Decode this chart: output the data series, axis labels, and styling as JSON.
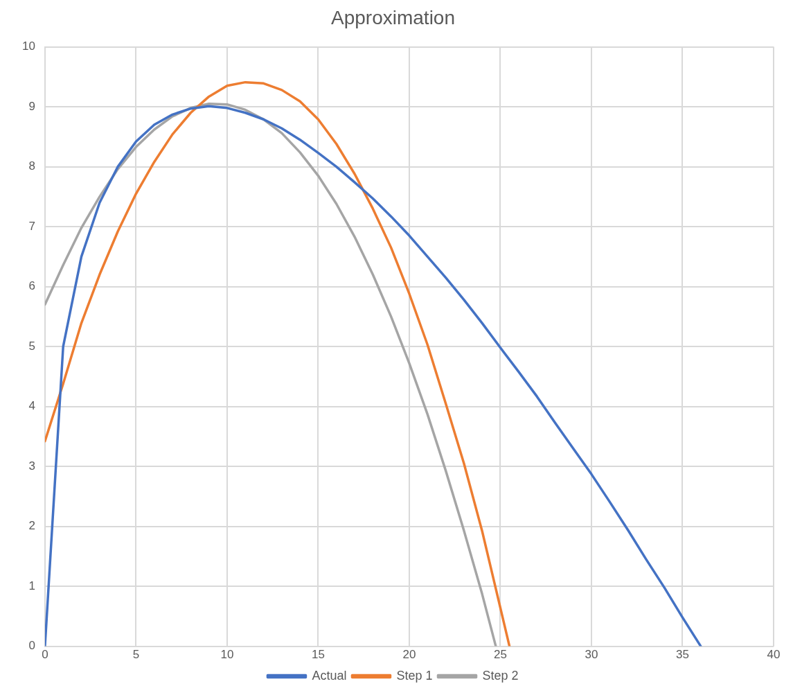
{
  "chart_data": {
    "type": "line",
    "title": "Approximation",
    "xlim": [
      0,
      40
    ],
    "xticks": [
      0,
      5,
      10,
      15,
      20,
      25,
      30,
      35,
      40
    ],
    "ylim": [
      0,
      10
    ],
    "yticks": [
      0,
      1,
      2,
      3,
      4,
      5,
      6,
      7,
      8,
      9,
      10
    ],
    "grid": true,
    "legend": "bottom",
    "marker": "none",
    "line_style": "solid",
    "series": [
      {
        "name": "Actual",
        "color": "#4472c4",
        "x": [
          0,
          1,
          2,
          3,
          4,
          5,
          6,
          7,
          8,
          9,
          10,
          11,
          12,
          13,
          14,
          15,
          16,
          17,
          18,
          19,
          20,
          21,
          22,
          23,
          24,
          25,
          26,
          27,
          28,
          29,
          30,
          31,
          32,
          33,
          34,
          35,
          36
        ],
        "values": [
          0,
          5.0,
          6.5,
          7.4,
          8.0,
          8.42,
          8.7,
          8.87,
          8.97,
          9.01,
          8.98,
          8.9,
          8.79,
          8.64,
          8.45,
          8.23,
          8.0,
          7.74,
          7.47,
          7.17,
          6.85,
          6.5,
          6.15,
          5.78,
          5.39,
          4.98,
          4.58,
          4.17,
          3.73,
          3.3,
          2.87,
          2.41,
          1.94,
          1.45,
          0.98,
          0.48,
          0
        ]
      },
      {
        "name": "Step 1",
        "color": "#ed7d31",
        "x": [
          0,
          1,
          2,
          3,
          4,
          5,
          6,
          7,
          8,
          9,
          10,
          11,
          12,
          13,
          14,
          15,
          16,
          17,
          18,
          19,
          20,
          21,
          22,
          23,
          24,
          25.5
        ],
        "values": [
          3.42,
          4.38,
          5.39,
          6.2,
          6.92,
          7.55,
          8.08,
          8.54,
          8.9,
          9.17,
          9.35,
          9.41,
          9.39,
          9.28,
          9.09,
          8.79,
          8.38,
          7.88,
          7.3,
          6.65,
          5.88,
          5.03,
          4.05,
          3.05,
          1.92,
          0
        ]
      },
      {
        "name": "Step 2",
        "color": "#a5a5a5",
        "x": [
          0,
          1,
          2,
          3,
          4,
          5,
          6,
          7,
          8,
          9,
          10,
          11,
          12,
          13,
          14,
          15,
          16,
          17,
          18,
          19,
          20,
          21,
          22,
          23,
          24,
          24.75
        ],
        "values": [
          5.7,
          6.36,
          6.98,
          7.5,
          7.96,
          8.33,
          8.62,
          8.84,
          8.98,
          9.05,
          9.04,
          8.95,
          8.79,
          8.56,
          8.24,
          7.85,
          7.38,
          6.83,
          6.2,
          5.5,
          4.72,
          3.87,
          2.93,
          1.93,
          0.87,
          0
        ]
      }
    ]
  }
}
